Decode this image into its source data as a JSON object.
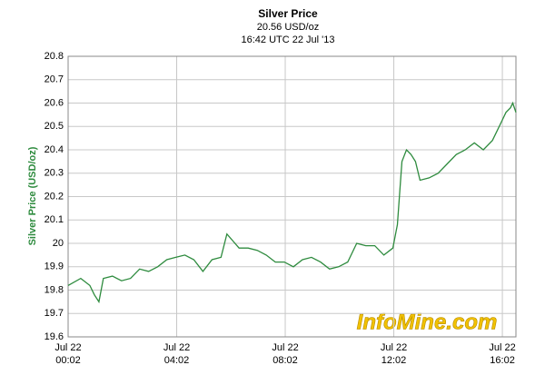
{
  "chart_data": {
    "type": "line",
    "title": "Silver Price",
    "subtitle": "20.56 USD/oz",
    "timestamp": "16:42 UTC 22 Jul '13",
    "y_label": "Silver Price (USD/oz)",
    "watermark": "InfoMine.com",
    "x": [
      "00:02",
      "00:30",
      "00:50",
      "01:00",
      "01:10",
      "01:20",
      "01:40",
      "02:00",
      "02:20",
      "02:40",
      "03:00",
      "03:20",
      "03:40",
      "04:00",
      "04:20",
      "04:40",
      "05:00",
      "05:20",
      "05:40",
      "05:53",
      "06:20",
      "06:40",
      "07:00",
      "07:20",
      "07:40",
      "08:00",
      "08:20",
      "08:40",
      "09:00",
      "09:20",
      "09:40",
      "10:00",
      "10:20",
      "10:40",
      "11:00",
      "11:20",
      "11:40",
      "12:00",
      "12:10",
      "12:20",
      "12:30",
      "12:40",
      "12:50",
      "13:00",
      "13:20",
      "13:40",
      "14:00",
      "14:20",
      "14:40",
      "15:00",
      "15:20",
      "15:40",
      "16:00",
      "16:10",
      "16:20",
      "16:25",
      "16:32"
    ],
    "series": [
      {
        "name": "Silver Price",
        "color": "#2e8b3e",
        "values": [
          19.82,
          19.85,
          19.82,
          19.78,
          19.75,
          19.85,
          19.86,
          19.84,
          19.85,
          19.89,
          19.88,
          19.9,
          19.93,
          19.94,
          19.95,
          19.93,
          19.88,
          19.93,
          19.94,
          20.04,
          19.98,
          19.98,
          19.97,
          19.95,
          19.92,
          19.92,
          19.9,
          19.93,
          19.94,
          19.92,
          19.89,
          19.9,
          19.92,
          20.0,
          19.99,
          19.99,
          19.95,
          19.98,
          20.08,
          20.35,
          20.4,
          20.38,
          20.35,
          20.27,
          20.28,
          20.3,
          20.34,
          20.38,
          20.4,
          20.43,
          20.4,
          20.44,
          20.52,
          20.56,
          20.58,
          20.6,
          20.56
        ]
      }
    ],
    "xlim": [
      "00:02",
      "16:32"
    ],
    "xticks": [
      {
        "value": "00:02",
        "label": [
          "Jul 22",
          "00:02"
        ]
      },
      {
        "value": "04:02",
        "label": [
          "Jul 22",
          "04:02"
        ]
      },
      {
        "value": "08:02",
        "label": [
          "Jul 22",
          "08:02"
        ]
      },
      {
        "value": "12:02",
        "label": [
          "Jul 22",
          "12:02"
        ]
      },
      {
        "value": "16:02",
        "label": [
          "Jul 22",
          "16:02"
        ]
      }
    ],
    "ylim": [
      19.6,
      20.8
    ],
    "yticks": [
      19.6,
      19.7,
      19.8,
      19.9,
      20,
      20.1,
      20.2,
      20.3,
      20.4,
      20.5,
      20.6,
      20.7,
      20.8
    ],
    "grid": true
  }
}
